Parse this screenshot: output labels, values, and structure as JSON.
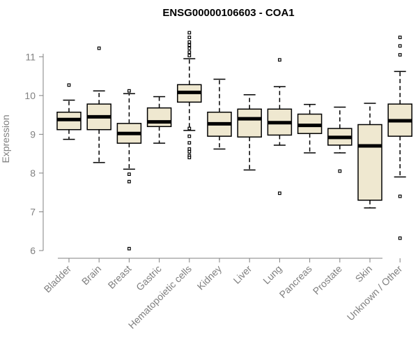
{
  "chart_data": {
    "type": "boxplot",
    "title": "ENSG00000106603 - COA1",
    "xlabel": "",
    "ylabel": "Expression",
    "ylim": [
      6,
      11.6
    ],
    "yticks": [
      6,
      7,
      8,
      9,
      10,
      11
    ],
    "categories": [
      "Bladder",
      "Brain",
      "Breast",
      "Gastric",
      "Hematopoietic cells",
      "Kidney",
      "Liver",
      "Lung",
      "Pancreas",
      "Prostate",
      "Skin",
      "Unknown / Other"
    ],
    "boxes": [
      {
        "name": "Bladder",
        "q1": 9.12,
        "median": 9.38,
        "q3": 9.57,
        "whisker_low": 8.87,
        "whisker_high": 9.88,
        "outliers": [
          10.27
        ]
      },
      {
        "name": "Brain",
        "q1": 9.12,
        "median": 9.45,
        "q3": 9.78,
        "whisker_low": 8.27,
        "whisker_high": 10.12,
        "outliers": [
          11.22
        ]
      },
      {
        "name": "Breast",
        "q1": 8.77,
        "median": 9.02,
        "q3": 9.28,
        "whisker_low": 8.1,
        "whisker_high": 10.05,
        "outliers": [
          10.12,
          7.97,
          7.78,
          6.05
        ]
      },
      {
        "name": "Gastric",
        "q1": 9.2,
        "median": 9.32,
        "q3": 9.68,
        "whisker_low": 8.77,
        "whisker_high": 9.97,
        "outliers": []
      },
      {
        "name": "Hematopoietic cells",
        "q1": 9.83,
        "median": 10.08,
        "q3": 10.28,
        "whisker_low": 9.1,
        "whisker_high": 10.95,
        "outliers": [
          11.62,
          11.5,
          11.38,
          11.3,
          11.22,
          11.12,
          11.03,
          9.15,
          8.95,
          8.78,
          8.62,
          8.55,
          8.45,
          8.4
        ]
      },
      {
        "name": "Kidney",
        "q1": 8.95,
        "median": 9.27,
        "q3": 9.57,
        "whisker_low": 8.62,
        "whisker_high": 10.42,
        "outliers": []
      },
      {
        "name": "Liver",
        "q1": 8.93,
        "median": 9.4,
        "q3": 9.65,
        "whisker_low": 8.08,
        "whisker_high": 10.02,
        "outliers": []
      },
      {
        "name": "Lung",
        "q1": 8.98,
        "median": 9.3,
        "q3": 9.65,
        "whisker_low": 8.72,
        "whisker_high": 10.23,
        "outliers": [
          10.92,
          7.48
        ]
      },
      {
        "name": "Pancreas",
        "q1": 9.02,
        "median": 9.23,
        "q3": 9.52,
        "whisker_low": 8.52,
        "whisker_high": 9.77,
        "outliers": []
      },
      {
        "name": "Prostate",
        "q1": 8.72,
        "median": 8.92,
        "q3": 9.15,
        "whisker_low": 8.52,
        "whisker_high": 9.7,
        "outliers": [
          8.05
        ]
      },
      {
        "name": "Skin",
        "q1": 7.3,
        "median": 8.7,
        "q3": 9.25,
        "whisker_low": 7.1,
        "whisker_high": 9.8,
        "outliers": []
      },
      {
        "name": "Unknown / Other",
        "q1": 8.95,
        "median": 9.35,
        "q3": 9.78,
        "whisker_low": 7.9,
        "whisker_high": 10.62,
        "outliers": [
          11.5,
          11.28,
          11.05,
          7.4,
          6.32
        ]
      }
    ],
    "colors": {
      "box_fill": "#efe8d0",
      "stroke": "#000000",
      "axis": "#808080",
      "title": "#000000"
    }
  }
}
